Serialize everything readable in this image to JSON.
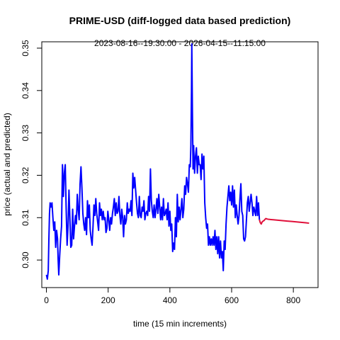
{
  "chart_data": {
    "type": "line",
    "title": "PRIME-USD (diff-logged data based prediction)",
    "subtitle": "2023-08-16--19:30:00  -  2026-04-15--11:15:00",
    "xlabel": "time (15 min increments)",
    "ylabel": "price (actual and predicted)",
    "xlim": [
      -15,
      880
    ],
    "ylim": [
      0.2935,
      0.3515
    ],
    "x_ticks": [
      0,
      200,
      400,
      600,
      800
    ],
    "y_ticks": [
      0.3,
      0.31,
      0.32,
      0.33,
      0.34,
      0.35
    ],
    "y_tick_labels": [
      "0.30",
      "0.31",
      "0.32",
      "0.33",
      "0.34",
      "0.35"
    ],
    "grid": false,
    "legend": "none",
    "series": [
      {
        "role": "actual",
        "color": "#0000ff",
        "points": [
          [
            0,
            0.2965
          ],
          [
            3,
            0.2955
          ],
          [
            6,
            0.2975
          ],
          [
            8,
            0.305
          ],
          [
            10,
            0.311
          ],
          [
            12,
            0.3135
          ],
          [
            15,
            0.3125
          ],
          [
            18,
            0.3135
          ],
          [
            21,
            0.31
          ],
          [
            24,
            0.307
          ],
          [
            27,
            0.309
          ],
          [
            30,
            0.303
          ],
          [
            33,
            0.307
          ],
          [
            36,
            0.305
          ],
          [
            38,
            0.3
          ],
          [
            40,
            0.2965
          ],
          [
            43,
            0.301
          ],
          [
            46,
            0.305
          ],
          [
            49,
            0.308
          ],
          [
            52,
            0.3225
          ],
          [
            55,
            0.315
          ],
          [
            58,
            0.3205
          ],
          [
            61,
            0.3225
          ],
          [
            64,
            0.312
          ],
          [
            67,
            0.3035
          ],
          [
            70,
            0.308
          ],
          [
            73,
            0.3165
          ],
          [
            76,
            0.31
          ],
          [
            79,
            0.303
          ],
          [
            82,
            0.3035
          ],
          [
            85,
            0.312
          ],
          [
            88,
            0.305
          ],
          [
            91,
            0.308
          ],
          [
            94,
            0.3105
          ],
          [
            97,
            0.3085
          ],
          [
            100,
            0.3155
          ],
          [
            103,
            0.312
          ],
          [
            106,
            0.3095
          ],
          [
            109,
            0.318
          ],
          [
            112,
            0.322
          ],
          [
            115,
            0.317
          ],
          [
            118,
            0.311
          ],
          [
            121,
            0.3085
          ],
          [
            124,
            0.307
          ],
          [
            127,
            0.31
          ],
          [
            130,
            0.306
          ],
          [
            133,
            0.314
          ],
          [
            136,
            0.31
          ],
          [
            139,
            0.313
          ],
          [
            142,
            0.307
          ],
          [
            145,
            0.305
          ],
          [
            148,
            0.3035
          ],
          [
            151,
            0.308
          ],
          [
            154,
            0.313
          ],
          [
            157,
            0.3105
          ],
          [
            160,
            0.3145
          ],
          [
            163,
            0.311
          ],
          [
            166,
            0.309
          ],
          [
            169,
            0.307
          ],
          [
            172,
            0.3135
          ],
          [
            175,
            0.3105
          ],
          [
            178,
            0.312
          ],
          [
            181,
            0.3095
          ],
          [
            184,
            0.3115
          ],
          [
            187,
            0.3095
          ],
          [
            190,
            0.31
          ],
          [
            193,
            0.3065
          ],
          [
            196,
            0.3075
          ],
          [
            199,
            0.3115
          ],
          [
            202,
            0.3095
          ],
          [
            205,
            0.307
          ],
          [
            208,
            0.31
          ],
          [
            211,
            0.3085
          ],
          [
            214,
            0.311
          ],
          [
            217,
            0.3125
          ],
          [
            220,
            0.3145
          ],
          [
            223,
            0.3105
          ],
          [
            226,
            0.3135
          ],
          [
            229,
            0.311
          ],
          [
            232,
            0.3115
          ],
          [
            235,
            0.315
          ],
          [
            238,
            0.3105
          ],
          [
            241,
            0.3085
          ],
          [
            244,
            0.312
          ],
          [
            247,
            0.31
          ],
          [
            250,
            0.3055
          ],
          [
            253,
            0.3105
          ],
          [
            256,
            0.3085
          ],
          [
            259,
            0.3095
          ],
          [
            262,
            0.3135
          ],
          [
            265,
            0.311
          ],
          [
            268,
            0.312
          ],
          [
            271,
            0.3115
          ],
          [
            274,
            0.314
          ],
          [
            277,
            0.3105
          ],
          [
            280,
            0.3205
          ],
          [
            283,
            0.317
          ],
          [
            286,
            0.3195
          ],
          [
            289,
            0.3165
          ],
          [
            292,
            0.3135
          ],
          [
            295,
            0.311
          ],
          [
            298,
            0.31
          ],
          [
            301,
            0.315
          ],
          [
            304,
            0.3105
          ],
          [
            307,
            0.31
          ],
          [
            310,
            0.3125
          ],
          [
            313,
            0.3115
          ],
          [
            316,
            0.314
          ],
          [
            319,
            0.3095
          ],
          [
            322,
            0.311
          ],
          [
            325,
            0.3115
          ],
          [
            328,
            0.3105
          ],
          [
            331,
            0.315
          ],
          [
            334,
            0.3115
          ],
          [
            337,
            0.3215
          ],
          [
            340,
            0.314
          ],
          [
            343,
            0.3115
          ],
          [
            346,
            0.31
          ],
          [
            349,
            0.313
          ],
          [
            352,
            0.31
          ],
          [
            355,
            0.312
          ],
          [
            358,
            0.3145
          ],
          [
            361,
            0.311
          ],
          [
            364,
            0.3155
          ],
          [
            367,
            0.3125
          ],
          [
            370,
            0.3095
          ],
          [
            373,
            0.3125
          ],
          [
            376,
            0.3095
          ],
          [
            379,
            0.3145
          ],
          [
            382,
            0.3105
          ],
          [
            385,
            0.311
          ],
          [
            388,
            0.312
          ],
          [
            391,
            0.3095
          ],
          [
            394,
            0.3135
          ],
          [
            397,
            0.308
          ],
          [
            400,
            0.3115
          ],
          [
            403,
            0.307
          ],
          [
            406,
            0.3085
          ],
          [
            409,
            0.302
          ],
          [
            412,
            0.304
          ],
          [
            415,
            0.3025
          ],
          [
            418,
            0.31
          ],
          [
            421,
            0.3055
          ],
          [
            424,
            0.3155
          ],
          [
            427,
            0.309
          ],
          [
            430,
            0.3125
          ],
          [
            433,
            0.3095
          ],
          [
            436,
            0.312
          ],
          [
            439,
            0.3145
          ],
          [
            442,
            0.31
          ],
          [
            445,
            0.312
          ],
          [
            448,
            0.3175
          ],
          [
            451,
            0.3155
          ],
          [
            454,
            0.3195
          ],
          [
            457,
            0.318
          ],
          [
            460,
            0.316
          ],
          [
            463,
            0.3225
          ],
          [
            466,
            0.322
          ],
          [
            468,
            0.327
          ],
          [
            470,
            0.34
          ],
          [
            471,
            0.351
          ],
          [
            473,
            0.335
          ],
          [
            475,
            0.3215
          ],
          [
            477,
            0.327
          ],
          [
            480,
            0.3205
          ],
          [
            483,
            0.3245
          ],
          [
            486,
            0.3265
          ],
          [
            489,
            0.3205
          ],
          [
            492,
            0.3245
          ],
          [
            495,
            0.3225
          ],
          [
            498,
            0.3225
          ],
          [
            501,
            0.319
          ],
          [
            504,
            0.325
          ],
          [
            507,
            0.3215
          ],
          [
            510,
            0.3245
          ],
          [
            513,
            0.3135
          ],
          [
            516,
            0.31
          ],
          [
            519,
            0.3075
          ],
          [
            522,
            0.3085
          ],
          [
            525,
            0.3035
          ],
          [
            528,
            0.3055
          ],
          [
            531,
            0.3035
          ],
          [
            534,
            0.305
          ],
          [
            537,
            0.3035
          ],
          [
            540,
            0.3055
          ],
          [
            543,
            0.3035
          ],
          [
            546,
            0.307
          ],
          [
            549,
            0.3025
          ],
          [
            552,
            0.3055
          ],
          [
            555,
            0.3015
          ],
          [
            558,
            0.3055
          ],
          [
            561,
            0.3005
          ],
          [
            564,
            0.3045
          ],
          [
            567,
            0.3005
          ],
          [
            570,
            0.302
          ],
          [
            573,
            0.2975
          ],
          [
            576,
            0.3045
          ],
          [
            579,
            0.3025
          ],
          [
            582,
            0.3085
          ],
          [
            585,
            0.3125
          ],
          [
            588,
            0.315
          ],
          [
            591,
            0.3175
          ],
          [
            594,
            0.314
          ],
          [
            597,
            0.316
          ],
          [
            600,
            0.313
          ],
          [
            603,
            0.3175
          ],
          [
            606,
            0.3125
          ],
          [
            609,
            0.3165
          ],
          [
            612,
            0.31
          ],
          [
            615,
            0.313
          ],
          [
            618,
            0.3105
          ],
          [
            621,
            0.3085
          ],
          [
            624,
            0.3105
          ],
          [
            627,
            0.3145
          ],
          [
            630,
            0.318
          ],
          [
            633,
            0.3115
          ],
          [
            636,
            0.3105
          ],
          [
            639,
            0.305
          ],
          [
            642,
            0.3045
          ],
          [
            645,
            0.3055
          ],
          [
            648,
            0.3095
          ],
          [
            651,
            0.3135
          ],
          [
            654,
            0.315
          ],
          [
            657,
            0.3115
          ],
          [
            660,
            0.3135
          ],
          [
            663,
            0.3155
          ],
          [
            666,
            0.3135
          ],
          [
            669,
            0.3105
          ],
          [
            672,
            0.3125
          ],
          [
            675,
            0.3115
          ],
          [
            678,
            0.3105
          ],
          [
            681,
            0.315
          ],
          [
            684,
            0.3105
          ],
          [
            687,
            0.3135
          ],
          [
            690,
            0.3095
          ]
        ]
      },
      {
        "role": "predicted",
        "color": "#e0103a",
        "points": [
          [
            690,
            0.3095
          ],
          [
            693,
            0.3088
          ],
          [
            696,
            0.3085
          ],
          [
            699,
            0.309
          ],
          [
            702,
            0.3092
          ],
          [
            705,
            0.3093
          ],
          [
            708,
            0.3096
          ],
          [
            711,
            0.3098
          ],
          [
            714,
            0.3097
          ],
          [
            720,
            0.3096
          ],
          [
            735,
            0.3095
          ],
          [
            750,
            0.3094
          ],
          [
            765,
            0.3093
          ],
          [
            780,
            0.3092
          ],
          [
            795,
            0.3091
          ],
          [
            810,
            0.309
          ],
          [
            825,
            0.3089
          ],
          [
            840,
            0.3088
          ],
          [
            851,
            0.3087
          ]
        ]
      }
    ]
  }
}
